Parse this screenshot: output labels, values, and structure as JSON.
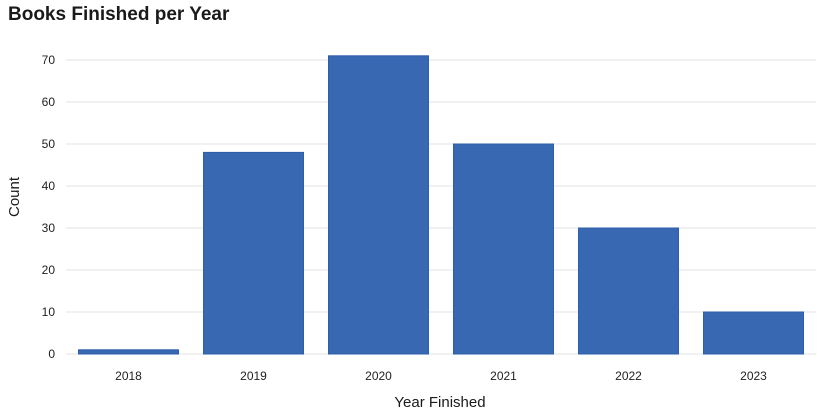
{
  "chart_data": {
    "type": "bar",
    "title": "Books Finished per Year",
    "xlabel": "Year Finished",
    "ylabel": "Count",
    "categories": [
      "2018",
      "2019",
      "2020",
      "2021",
      "2022",
      "2023"
    ],
    "values": [
      1,
      48,
      71,
      50,
      30,
      10
    ],
    "ylim": [
      0,
      75
    ],
    "yticks": [
      0,
      10,
      20,
      30,
      40,
      50,
      60,
      70
    ],
    "grid": true,
    "legend": "none",
    "bar_color": "#3868b2"
  }
}
